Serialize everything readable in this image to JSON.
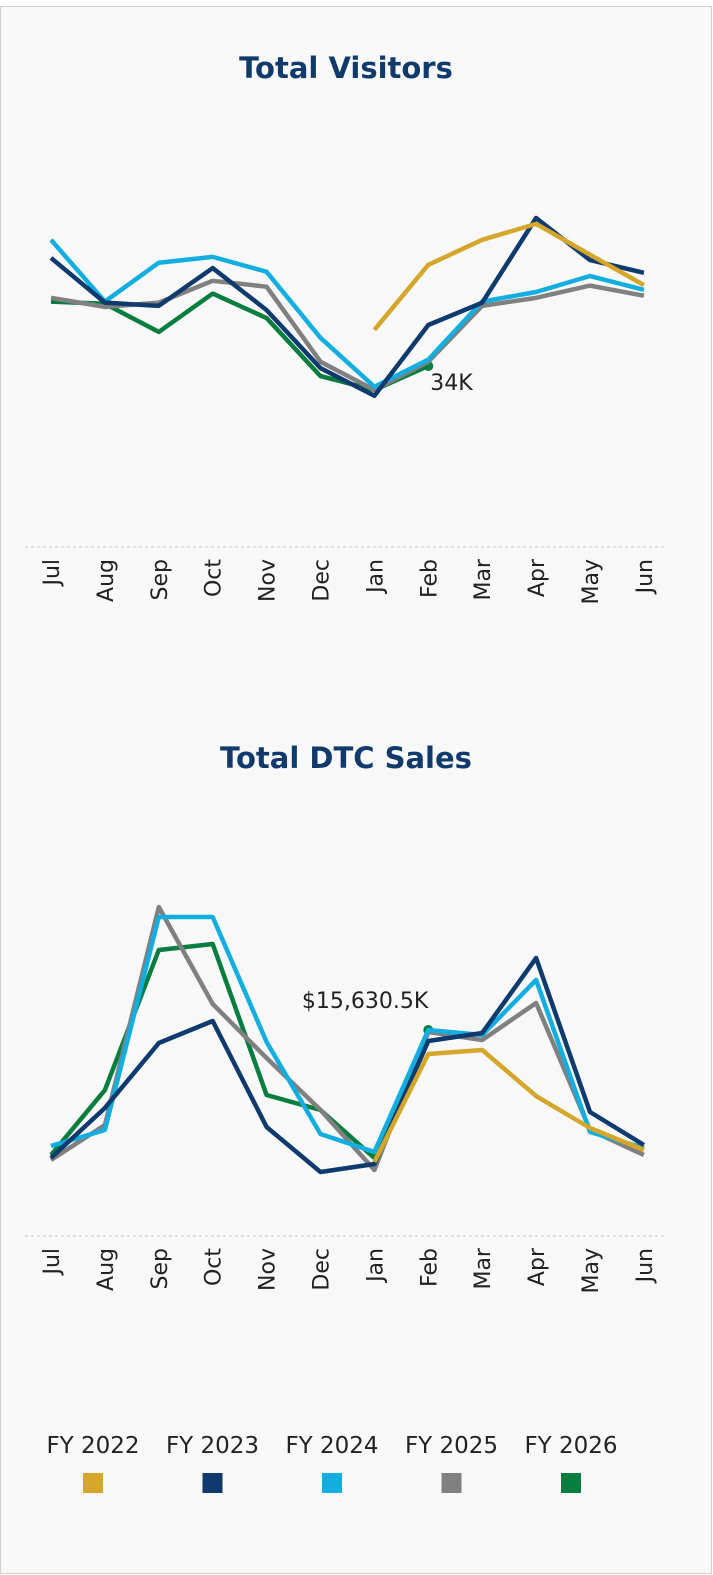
{
  "chart_data": [
    {
      "type": "line",
      "title": "Total Visitors",
      "categories": [
        "Jul",
        "Aug",
        "Sep",
        "Oct",
        "Nov",
        "Dec",
        "Jan",
        "Feb",
        "Mar",
        "Apr",
        "May",
        "Jun"
      ],
      "series": [
        {
          "name": "FY 2022",
          "color": "#d4a62a",
          "values": [
            null,
            null,
            null,
            null,
            null,
            null,
            40.8,
            53.0,
            57.7,
            60.7,
            54.9,
            49.2
          ]
        },
        {
          "name": "FY 2023",
          "color": "#0e3a6d",
          "values": [
            54.3,
            45.9,
            45.3,
            52.4,
            44.5,
            33.6,
            28.4,
            41.7,
            45.9,
            61.8,
            53.9,
            51.5
          ]
        },
        {
          "name": "FY 2024",
          "color": "#12aee0",
          "values": [
            57.7,
            46.1,
            53.4,
            54.5,
            51.7,
            39.3,
            30.1,
            35.2,
            46.1,
            47.9,
            50.9,
            48.3
          ]
        },
        {
          "name": "FY 2025",
          "color": "#808080",
          "values": [
            46.8,
            45.1,
            45.9,
            50.0,
            48.9,
            34.8,
            29.5,
            34.8,
            45.3,
            46.8,
            49.1,
            47.2
          ]
        },
        {
          "name": "FY 2026",
          "color": "#077d3f",
          "values": [
            46.1,
            45.7,
            40.4,
            47.6,
            43.0,
            32.1,
            29.5,
            34.0,
            null,
            null,
            null,
            null
          ],
          "value_labels": [
            null,
            null,
            null,
            null,
            null,
            null,
            null,
            "34K",
            null,
            null,
            null,
            null
          ]
        }
      ]
    },
    {
      "type": "line",
      "title": "Total DTC Sales",
      "categories": [
        "Jul",
        "Aug",
        "Sep",
        "Oct",
        "Nov",
        "Dec",
        "Jan",
        "Feb",
        "Mar",
        "Apr",
        "May",
        "Jun"
      ],
      "series": [
        {
          "name": "FY 2022",
          "color": "#d4a62a",
          "values": [
            null,
            null,
            null,
            null,
            null,
            null,
            5615,
            13810,
            14114,
            10623,
            8195,
            6526
          ]
        },
        {
          "name": "FY 2023",
          "color": "#0e3a6d",
          "values": [
            5919,
            9713,
            14645,
            16314,
            8271,
            4856,
            5463,
            14797,
            15404,
            21095,
            9409,
            6905
          ]
        },
        {
          "name": "FY 2024",
          "color": "#12aee0",
          "values": [
            6829,
            8043,
            24206,
            24206,
            14721,
            7740,
            6374,
            15631,
            15252,
            19425,
            7891,
            6677
          ]
        },
        {
          "name": "FY 2025",
          "color": "#808080",
          "values": [
            5767,
            8423,
            24965,
            17604,
            13507,
            9561,
            5008,
            15480,
            14873,
            17680,
            8043,
            6146
          ]
        },
        {
          "name": "FY 2026",
          "color": "#077d3f",
          "values": [
            6146,
            11078,
            21702,
            22157,
            10699,
            9561,
            5919,
            15630.5,
            null,
            null,
            null,
            null
          ],
          "value_labels": [
            null,
            null,
            null,
            null,
            null,
            null,
            null,
            "$15,630.5K",
            null,
            null,
            null,
            null
          ]
        }
      ]
    }
  ]
}
